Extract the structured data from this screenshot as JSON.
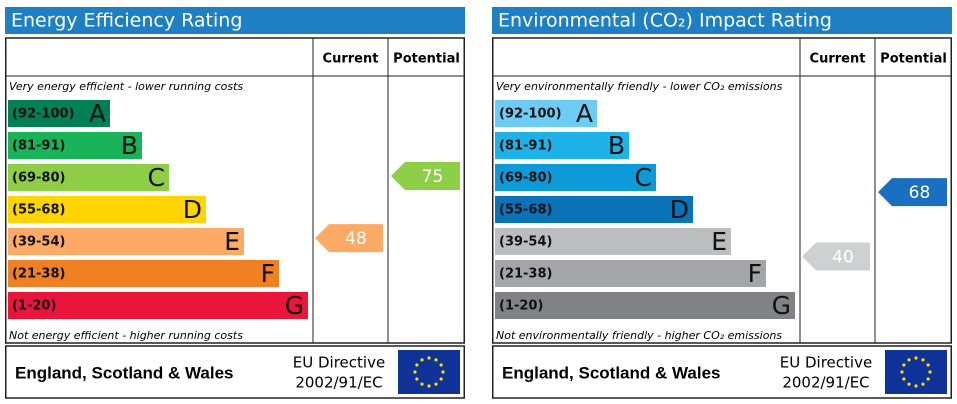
{
  "panels": [
    {
      "title": "Energy Efficiency Rating",
      "columns": [
        "Current",
        "Potential"
      ],
      "top_note": "Very energy efficient - lower running costs",
      "bottom_note": "Not energy efficient - higher running costs",
      "bands": [
        {
          "range": "(92-100)",
          "letter": "A",
          "color": "#008054"
        },
        {
          "range": "(81-91)",
          "letter": "B",
          "color": "#19b459"
        },
        {
          "range": "(69-80)",
          "letter": "C",
          "color": "#8dce46"
        },
        {
          "range": "(55-68)",
          "letter": "D",
          "color": "#ffd500"
        },
        {
          "range": "(39-54)",
          "letter": "E",
          "color": "#fcaa65"
        },
        {
          "range": "(21-38)",
          "letter": "F",
          "color": "#ef8023"
        },
        {
          "range": "(1-20)",
          "letter": "G",
          "color": "#e9153b"
        }
      ],
      "current": {
        "value": 48,
        "color": "#fcaa65"
      },
      "potential": {
        "value": 75,
        "color": "#8dce46"
      },
      "footer": {
        "region": "England, Scotland & Wales",
        "directive": [
          "EU Directive",
          "2002/91/EC"
        ]
      }
    },
    {
      "title": "Environmental (CO₂) Impact Rating",
      "columns": [
        "Current",
        "Potential"
      ],
      "top_note": "Very environmentally friendly - lower CO₂ emissions",
      "bottom_note": "Not environmentally friendly - higher CO₂ emissions",
      "bands": [
        {
          "range": "(92-100)",
          "letter": "A",
          "color": "#6dccf3"
        },
        {
          "range": "(81-91)",
          "letter": "B",
          "color": "#1eb2e8"
        },
        {
          "range": "(69-80)",
          "letter": "C",
          "color": "#0d9ad8"
        },
        {
          "range": "(55-68)",
          "letter": "D",
          "color": "#0a72b6"
        },
        {
          "range": "(39-54)",
          "letter": "E",
          "color": "#bbbdbf"
        },
        {
          "range": "(21-38)",
          "letter": "F",
          "color": "#a3a5a8"
        },
        {
          "range": "(1-20)",
          "letter": "G",
          "color": "#808285"
        }
      ],
      "current": {
        "value": 40,
        "color": "#cfd0d1"
      },
      "potential": {
        "value": 68,
        "color": "#1a6fc1"
      },
      "footer": {
        "region": "England, Scotland & Wales",
        "directive": [
          "EU Directive",
          "2002/91/EC"
        ]
      }
    }
  ]
}
